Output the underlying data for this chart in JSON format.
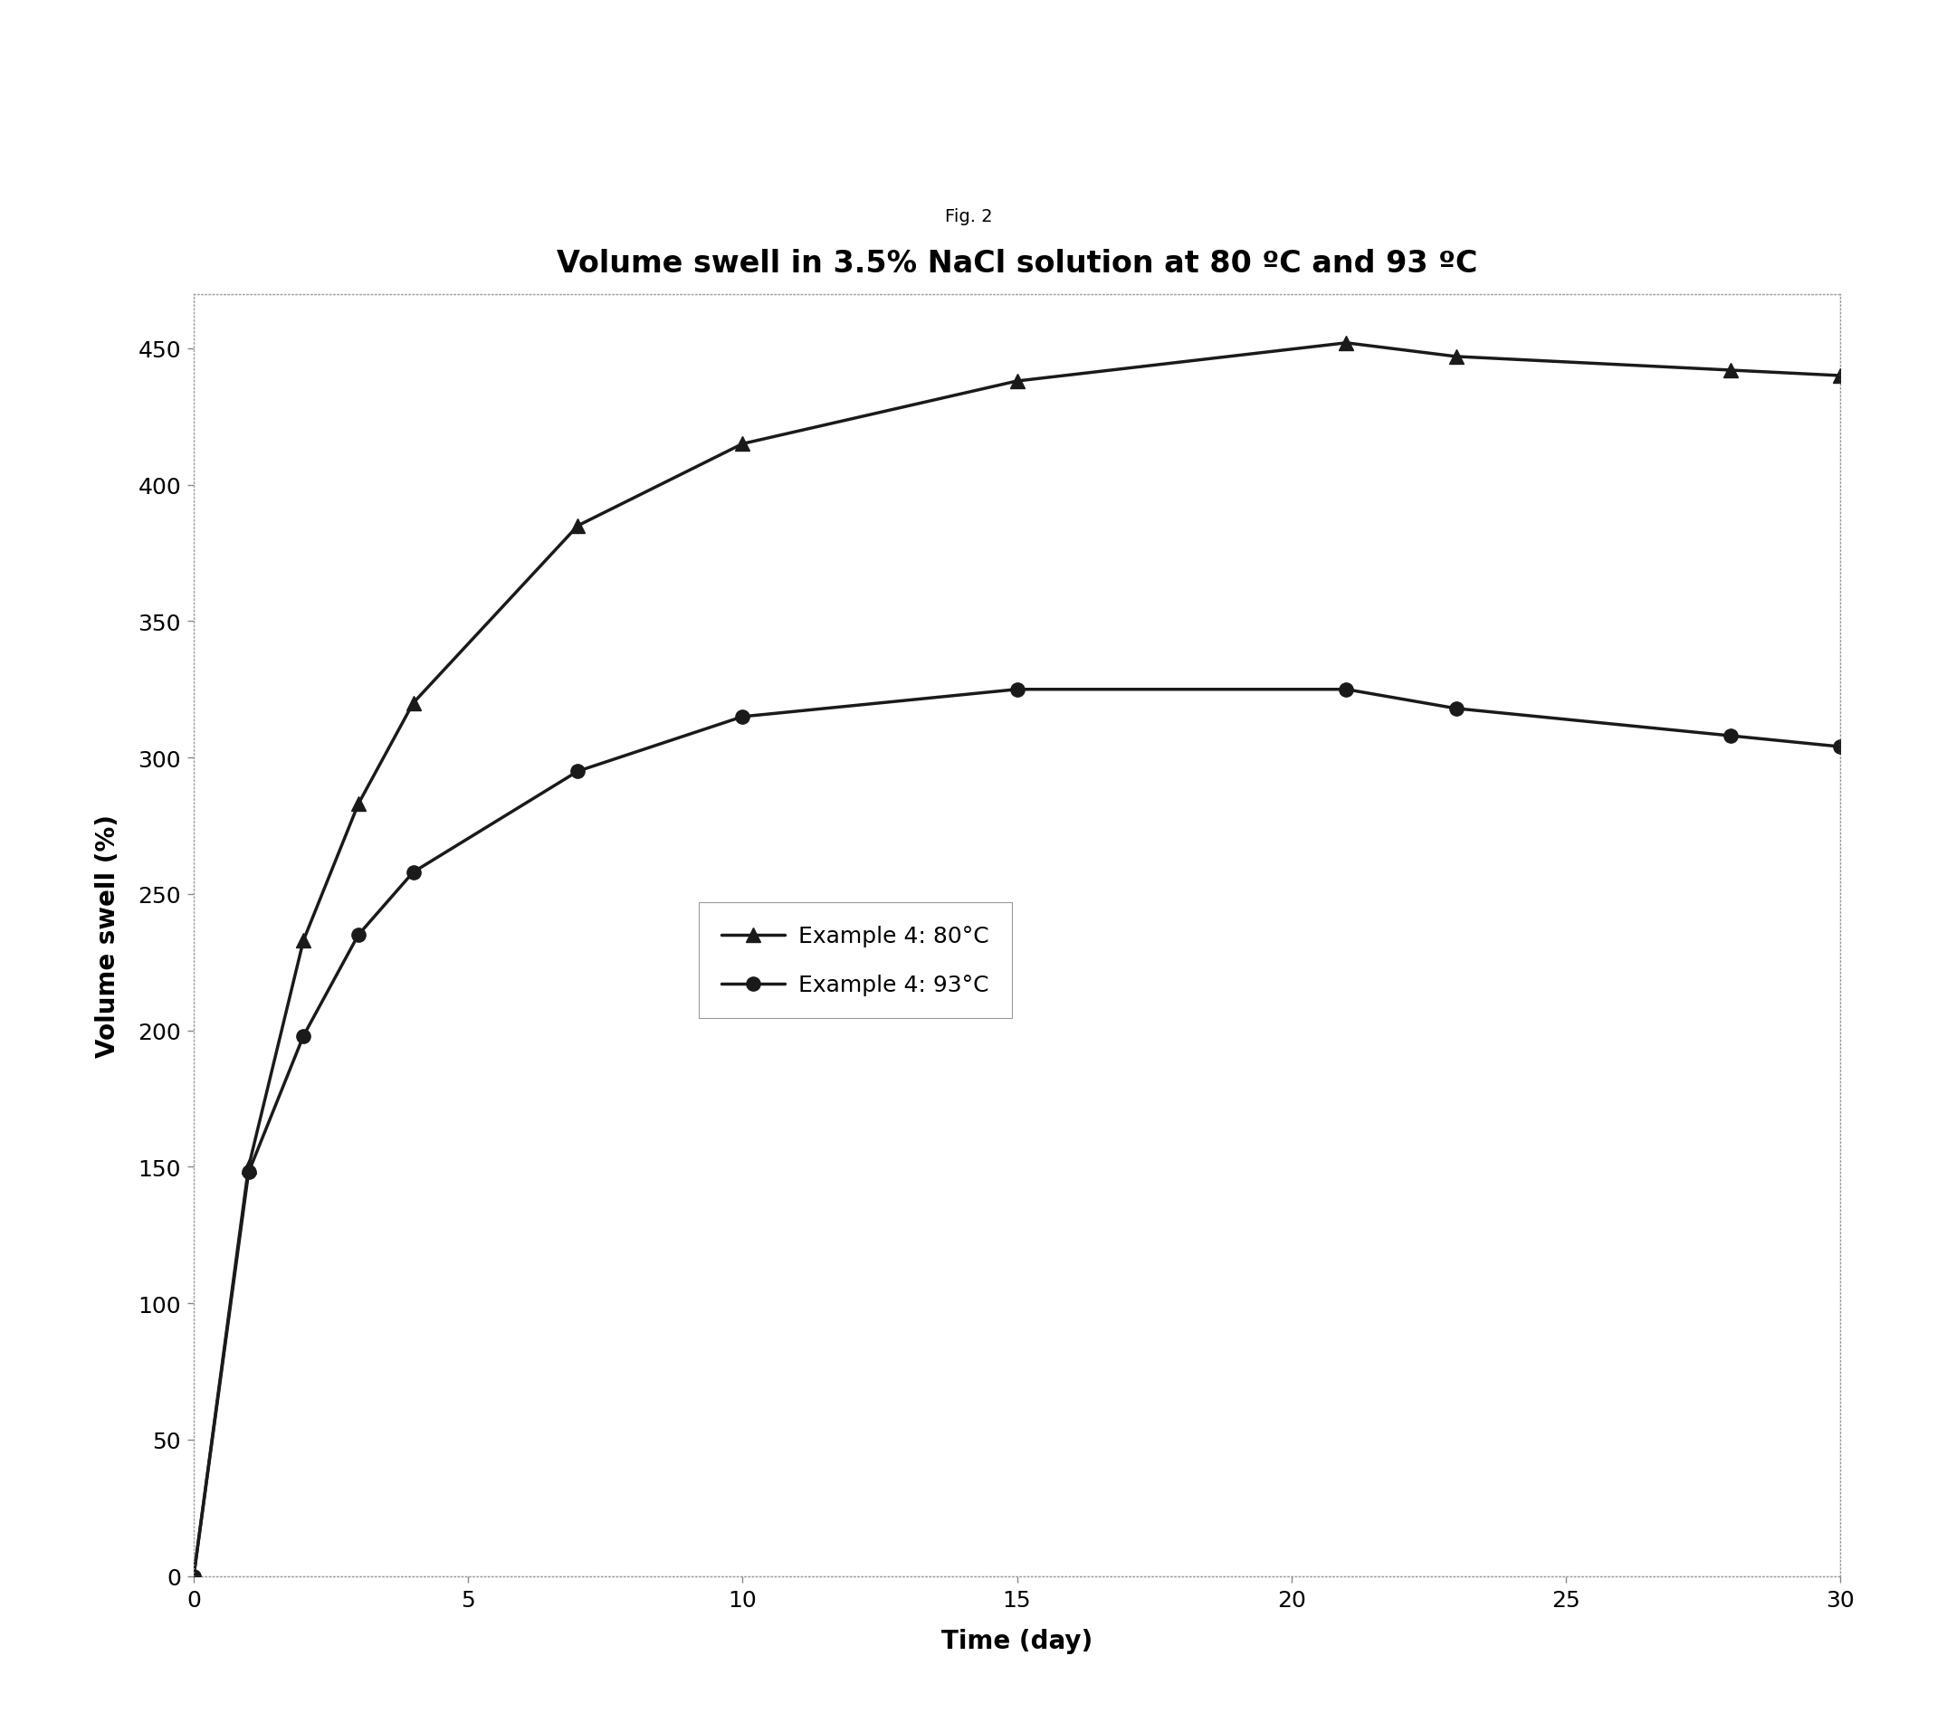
{
  "title": "Volume swell in 3.5% NaCl solution at 80 ºC and 93 ºC",
  "fig_label": "Fig. 2",
  "xlabel": "Time (day)",
  "ylabel": "Volume swell (%)",
  "series_80": {
    "label": "Example 4: 80°C",
    "x": [
      0,
      1,
      2,
      3,
      4,
      7,
      10,
      15,
      21,
      23,
      28,
      30
    ],
    "y": [
      0,
      150,
      233,
      283,
      320,
      385,
      415,
      438,
      452,
      447,
      442,
      440
    ]
  },
  "series_93": {
    "label": "Example 4: 93°C",
    "x": [
      0,
      1,
      2,
      3,
      4,
      7,
      10,
      15,
      21,
      23,
      28,
      30
    ],
    "y": [
      0,
      148,
      198,
      235,
      258,
      295,
      315,
      325,
      325,
      318,
      308,
      304
    ]
  },
  "xlim": [
    0,
    30
  ],
  "ylim": [
    0,
    470
  ],
  "xticks": [
    0,
    5,
    10,
    15,
    20,
    25,
    30
  ],
  "yticks": [
    0,
    50,
    100,
    150,
    200,
    250,
    300,
    350,
    400,
    450
  ],
  "line_color": "#1a1a1a",
  "background_color": "#ffffff",
  "title_fontsize": 24,
  "label_fontsize": 20,
  "tick_fontsize": 18,
  "legend_fontsize": 18,
  "fig_label_fontsize": 14
}
